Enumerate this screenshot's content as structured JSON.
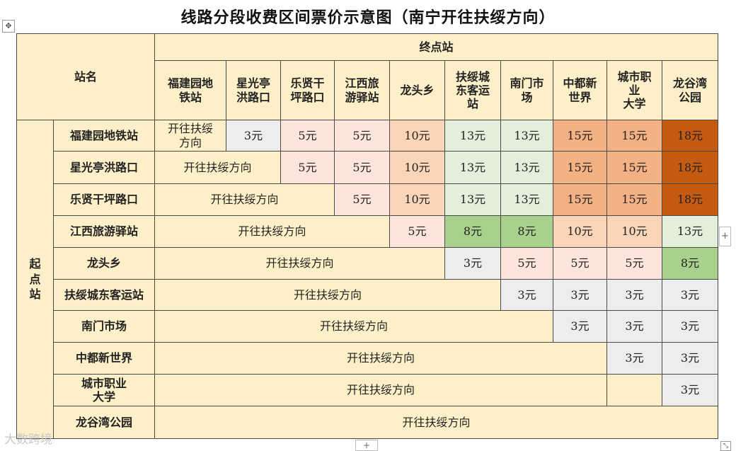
{
  "title": "线路分段收费区间票价示意图（南宁开往扶绥方向）",
  "header": {
    "station_name": "站名",
    "destination": "终点站",
    "origin": "起点站"
  },
  "stations": [
    "福建园地铁站",
    "星光亭洪路口",
    "乐贤干坪路口",
    "江西旅游驿站",
    "龙头乡",
    "扶绥城东客运站",
    "南门市场",
    "中都新世界",
    "城市职业大学",
    "龙谷湾公园"
  ],
  "column_labels": [
    [
      "福建园地",
      "铁站"
    ],
    [
      "星光亭",
      "洪路口"
    ],
    [
      "乐贤干",
      "坪路口"
    ],
    [
      "江西旅",
      "游驿站"
    ],
    [
      "龙头乡"
    ],
    [
      "扶绥城",
      "东客运",
      "站"
    ],
    [
      "南门市",
      "场"
    ],
    [
      "中都新",
      "世界"
    ],
    [
      "城市职",
      "业",
      "大学"
    ],
    [
      "龙谷湾",
      "公园"
    ]
  ],
  "row_labels": [
    [
      "福建园地铁站"
    ],
    [
      "星光亭洪路口"
    ],
    [
      "乐贤干坪路口"
    ],
    [
      "江西旅游驿站"
    ],
    [
      "龙头乡"
    ],
    [
      "扶绥城东客运站"
    ],
    [
      "南门市场"
    ],
    [
      "中都新世界"
    ],
    [
      "城市职业",
      "大学"
    ],
    [
      "龙谷湾公园"
    ]
  ],
  "direction_text": "开往扶绥方向",
  "direction_text_r1": [
    "开往扶绥",
    "方向"
  ],
  "fares": [
    [
      "",
      "3元",
      "5元",
      "5元",
      "10元",
      "13元",
      "13元",
      "15元",
      "15元",
      "18元"
    ],
    [
      "",
      "",
      "5元",
      "5元",
      "10元",
      "13元",
      "13元",
      "15元",
      "15元",
      "18元"
    ],
    [
      "",
      "",
      "",
      "5元",
      "10元",
      "13元",
      "13元",
      "15元",
      "15元",
      "18元"
    ],
    [
      "",
      "",
      "",
      "",
      "5元",
      "8元",
      "8元",
      "10元",
      "10元",
      "13元"
    ],
    [
      "",
      "",
      "",
      "",
      "",
      "3元",
      "5元",
      "5元",
      "5元",
      "8元"
    ],
    [
      "",
      "",
      "",
      "",
      "",
      "",
      "3元",
      "3元",
      "3元",
      "3元"
    ],
    [
      "",
      "",
      "",
      "",
      "",
      "",
      "",
      "3元",
      "3元",
      "3元"
    ],
    [
      "",
      "",
      "",
      "",
      "",
      "",
      "",
      "",
      "3元",
      "3元"
    ],
    [
      "",
      "",
      "",
      "",
      "",
      "",
      "",
      "",
      "",
      "3元"
    ],
    [
      "",
      "",
      "",
      "",
      "",
      "",
      "",
      "",
      "",
      ""
    ]
  ],
  "fare_colors": {
    "3元": "#ededed",
    "5元": "#fde5dc",
    "8元": "#a9d18e",
    "10元": "#fbd5b8",
    "13元": "#e2efda",
    "15元": "#f4b183",
    "18元": "#c55a11",
    "direction": "#fdf0c8"
  },
  "watermark": "大数跨境",
  "controls": {
    "add_row": "+",
    "add_column": "+",
    "move": "✥",
    "resize": "⤡"
  }
}
